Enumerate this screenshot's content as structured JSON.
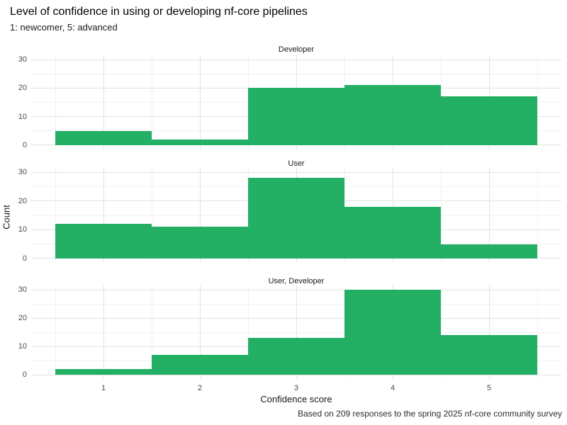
{
  "chart_data": {
    "type": "bar",
    "subtype": "faceted-histogram",
    "title": "Level of confidence in using or developing nf-core pipelines",
    "subtitle": "1: newcomer, 5: advanced",
    "xlabel": "Confidence score",
    "ylabel": "Count",
    "caption": "Based on 209 responses to the spring 2025 nf-core community survey",
    "categories": [
      "1",
      "2",
      "3",
      "4",
      "5"
    ],
    "facets": [
      {
        "label": "Developer",
        "values": [
          5,
          2,
          20,
          21,
          17
        ]
      },
      {
        "label": "User",
        "values": [
          12,
          11,
          28,
          18,
          5
        ]
      },
      {
        "label": "User, Developer",
        "values": [
          2,
          7,
          13,
          30,
          14
        ]
      }
    ],
    "x_ticks": [
      "1",
      "2",
      "3",
      "4",
      "5"
    ],
    "y_ticks": [
      0,
      10,
      20,
      30
    ],
    "y_minor_ticks": [
      5,
      15,
      25
    ],
    "ylim": [
      0,
      30
    ],
    "bin_edges": [
      0.5,
      1.5,
      2.5,
      3.5,
      4.5,
      5.5
    ],
    "grid": true,
    "legend": "none"
  },
  "colors": {
    "bar": "#24B064",
    "background": "#FFFFFF",
    "grid_major": "#E3E3E3",
    "grid_minor": "#F1F1F1",
    "axis_text": "#4D4D4D",
    "text": "#1A1A1A"
  }
}
